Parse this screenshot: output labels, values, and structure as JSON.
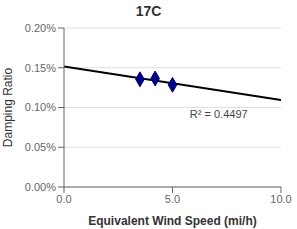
{
  "chart_data": {
    "type": "scatter",
    "title": "17C",
    "x_label": "Equivalent Wind Speed (mi/h)",
    "y_label": "Damping Ratio",
    "x": [
      3.5,
      4.2,
      5.0
    ],
    "values": [
      0.001355,
      0.001365,
      0.001285
    ],
    "color": "#00008B",
    "marker": "diamond",
    "fit_line": {
      "x": [
        0.0,
        10.0
      ],
      "values": [
        0.001515,
        0.001095
      ],
      "color": "#000000"
    },
    "annotations": [
      {
        "text": "R² = 0.4497",
        "x": 5.8,
        "y": 0.00092
      }
    ],
    "xlim": [
      0.0,
      10.0
    ],
    "ylim": [
      0.0,
      0.002
    ],
    "xticks": [
      {
        "value": 0.0,
        "label": "0.0"
      },
      {
        "value": 5.0,
        "label": "5.0"
      },
      {
        "value": 10.0,
        "label": "10.0"
      }
    ],
    "yticks": [
      {
        "value": 0.0,
        "label": "0.00%"
      },
      {
        "value": 0.0005,
        "label": "0.05%"
      },
      {
        "value": 0.001,
        "label": "0.10%"
      },
      {
        "value": 0.0015,
        "label": "0.15%"
      },
      {
        "value": 0.002,
        "label": "0.20%"
      }
    ],
    "grid": "y"
  }
}
